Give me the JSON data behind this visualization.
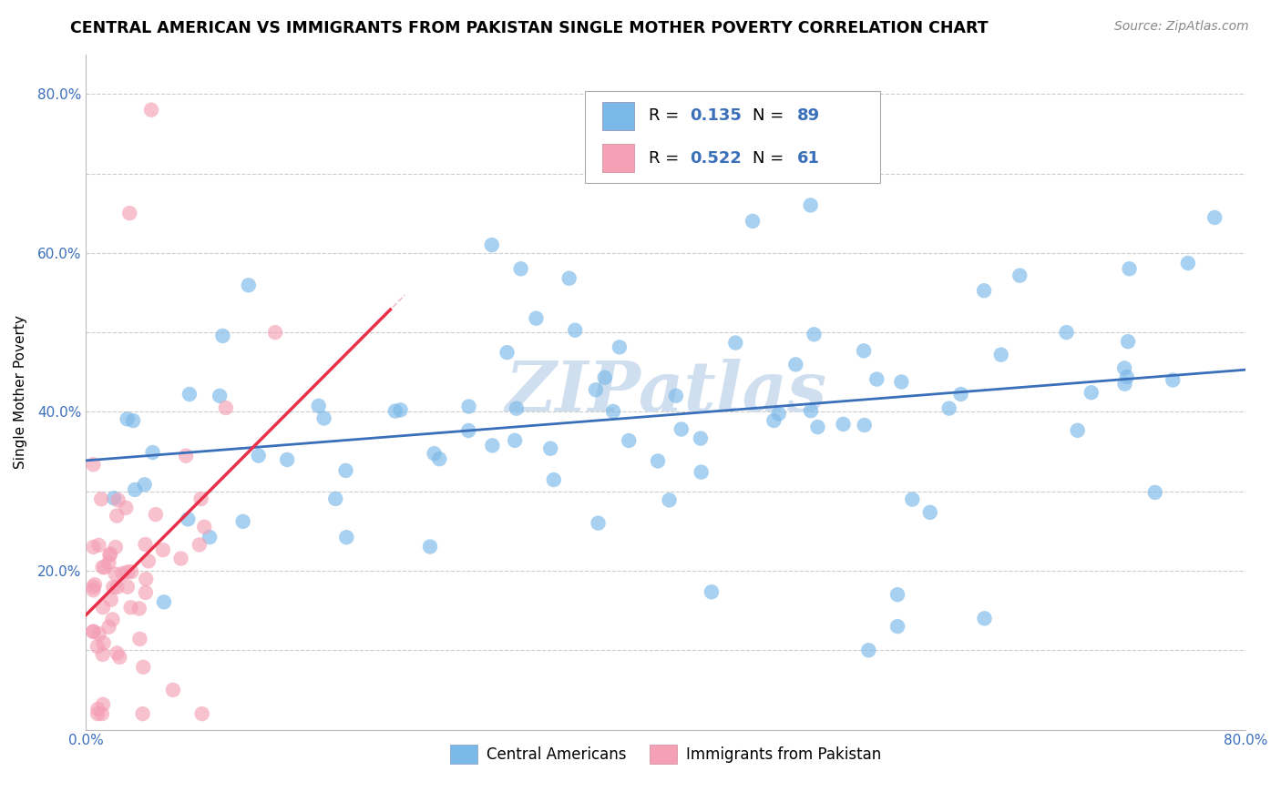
{
  "title": "CENTRAL AMERICAN VS IMMIGRANTS FROM PAKISTAN SINGLE MOTHER POVERTY CORRELATION CHART",
  "source": "Source: ZipAtlas.com",
  "ylabel": "Single Mother Poverty",
  "r1": 0.135,
  "n1": 89,
  "r2": 0.522,
  "n2": 61,
  "color1": "#7ab8e8",
  "color2": "#f4a0b5",
  "line_color1": "#3a6fba",
  "line_color2": "#e8304a",
  "dash_color": "#e8a0b0",
  "watermark": "ZIPatlas",
  "watermark_color": "#d0dff0",
  "title_fontsize": 12.5,
  "axis_label_fontsize": 11,
  "tick_fontsize": 11,
  "legend_fontsize": 13,
  "source_fontsize": 10
}
